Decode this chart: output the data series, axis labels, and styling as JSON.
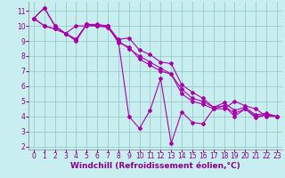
{
  "xlabel": "Windchill (Refroidissement éolien,°C)",
  "background_color": "#c8eef0",
  "line_color": "#aa00aa",
  "grid_color": "#99cccc",
  "x": [
    0,
    1,
    2,
    3,
    4,
    5,
    6,
    7,
    8,
    9,
    10,
    11,
    12,
    13,
    14,
    15,
    16,
    17,
    18,
    19,
    20,
    21,
    22,
    23
  ],
  "lines": [
    [
      10.5,
      11.2,
      10.0,
      9.5,
      9.0,
      10.1,
      10.1,
      10.0,
      9.1,
      9.2,
      8.4,
      8.1,
      7.6,
      7.5,
      6.1,
      5.6,
      5.2,
      4.6,
      4.9,
      4.4,
      4.6,
      4.1,
      4.2,
      4.0
    ],
    [
      10.5,
      10.0,
      9.8,
      9.5,
      9.1,
      10.1,
      10.0,
      10.0,
      8.9,
      8.6,
      7.8,
      7.4,
      7.0,
      6.8,
      5.8,
      5.2,
      5.0,
      4.6,
      4.7,
      4.2,
      4.5,
      4.0,
      4.1,
      4.0
    ],
    [
      10.5,
      10.0,
      9.8,
      9.5,
      9.1,
      10.1,
      10.0,
      10.0,
      9.0,
      8.5,
      8.0,
      7.6,
      7.2,
      6.8,
      5.5,
      5.0,
      4.8,
      4.5,
      4.7,
      4.0,
      4.5,
      3.9,
      4.1,
      4.0
    ],
    [
      10.5,
      11.2,
      10.0,
      9.5,
      10.0,
      10.0,
      10.0,
      9.9,
      9.0,
      4.0,
      3.2,
      4.4,
      6.5,
      2.2,
      4.3,
      3.6,
      3.5,
      4.5,
      4.5,
      5.0,
      4.7,
      4.5,
      4.0,
      4.0
    ]
  ],
  "ylim": [
    1.8,
    11.6
  ],
  "xlim": [
    -0.5,
    23.5
  ],
  "yticks": [
    2,
    3,
    4,
    5,
    6,
    7,
    8,
    9,
    10,
    11
  ],
  "xticks": [
    0,
    1,
    2,
    3,
    4,
    5,
    6,
    7,
    8,
    9,
    10,
    11,
    12,
    13,
    14,
    15,
    16,
    17,
    18,
    19,
    20,
    21,
    22,
    23
  ],
  "tick_fontsize": 5.5,
  "xlabel_fontsize": 6.5
}
